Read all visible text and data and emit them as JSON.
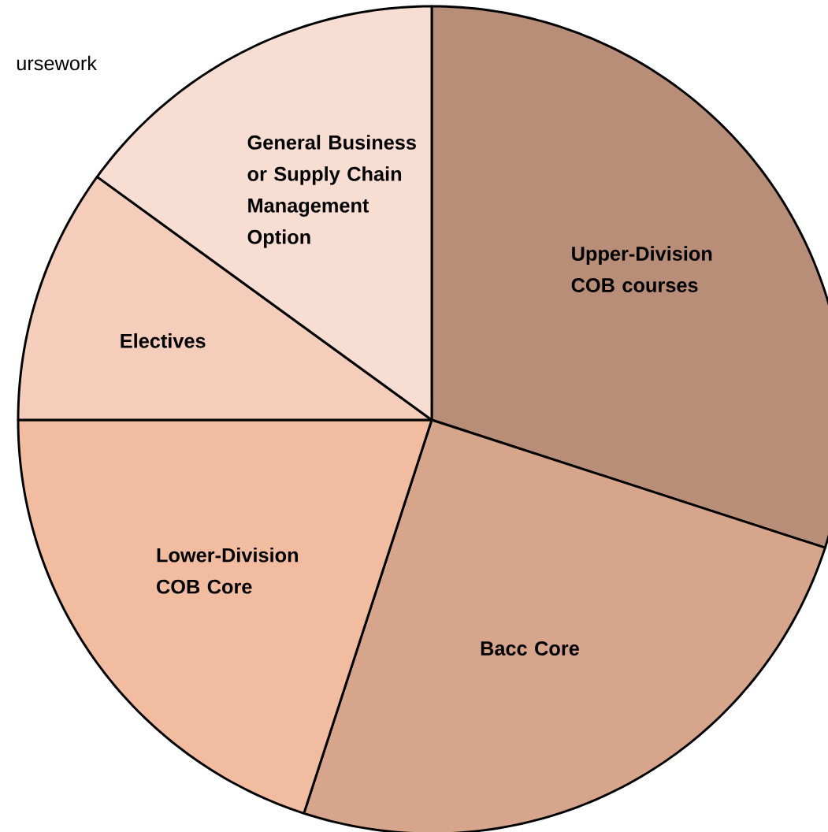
{
  "chart_data": {
    "type": "pie",
    "categories": [
      "Upper-Division COB courses",
      "Bacc Core",
      "Lower-Division COB Core",
      "Electives",
      "General Business or Supply Chain Management Option"
    ],
    "values": [
      30,
      25,
      20,
      10,
      15
    ],
    "colors": [
      "#b88e78",
      "#d7a58b",
      "#f2bca0",
      "#f5cdbb",
      "#f8ded2"
    ],
    "annotations": [
      "ursework"
    ]
  }
}
